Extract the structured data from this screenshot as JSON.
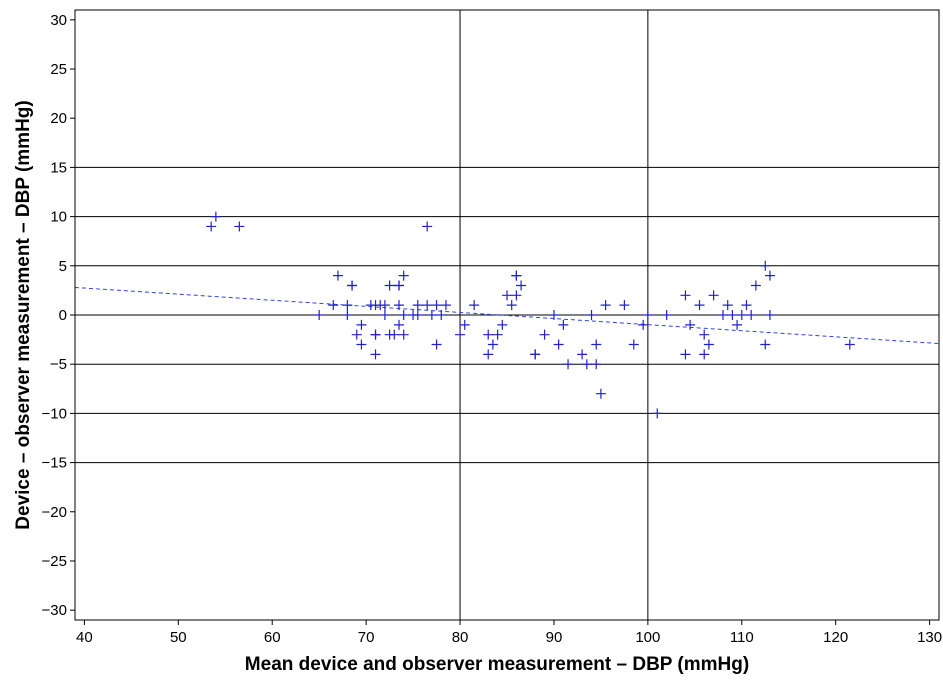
{
  "chart_data": {
    "type": "scatter",
    "title": "",
    "xlabel": "Mean device and observer measurement – DBP (mmHg)",
    "ylabel": "Device – observer measurement – DBP (mmHg)",
    "xlim": [
      39,
      131
    ],
    "ylim": [
      -31,
      31
    ],
    "x_ticks": [
      40,
      50,
      60,
      70,
      80,
      90,
      100,
      110,
      120,
      130
    ],
    "y_ticks": [
      30,
      25,
      20,
      15,
      10,
      5,
      0,
      -5,
      -10,
      -15,
      -20,
      -25,
      -30
    ],
    "x_tick_labels": [
      "40",
      "50",
      "60",
      "70",
      "80",
      "90",
      "100",
      "110",
      "120",
      "130"
    ],
    "y_tick_labels": [
      "30",
      "25",
      "20",
      "15",
      "10",
      "5",
      "0",
      "−5",
      "−10",
      "−15",
      "−20",
      "−25",
      "−30"
    ],
    "grid": {
      "horizontal": [
        15,
        10,
        5,
        0,
        -5,
        -10,
        -15
      ],
      "vertical": [
        80,
        100
      ]
    },
    "marker_color": "#2222cc",
    "trend_line": {
      "color": "#3344dd",
      "style": "dashed",
      "x": [
        39,
        131
      ],
      "y": [
        2.8,
        -2.9
      ]
    },
    "points": [
      [
        53.5,
        9
      ],
      [
        54,
        10
      ],
      [
        56.5,
        9
      ],
      [
        65,
        0
      ],
      [
        66.5,
        1
      ],
      [
        67,
        4
      ],
      [
        68,
        1
      ],
      [
        68,
        0
      ],
      [
        68.5,
        3
      ],
      [
        68.5,
        3
      ],
      [
        69,
        -2
      ],
      [
        69.5,
        -1
      ],
      [
        69.5,
        -3
      ],
      [
        70.5,
        1
      ],
      [
        71,
        1
      ],
      [
        71,
        -2
      ],
      [
        71,
        -2
      ],
      [
        71,
        -4
      ],
      [
        71.5,
        1
      ],
      [
        72,
        0
      ],
      [
        72,
        1
      ],
      [
        72.5,
        3
      ],
      [
        72.5,
        -2
      ],
      [
        73,
        -2
      ],
      [
        73.5,
        3
      ],
      [
        73.5,
        3
      ],
      [
        73.5,
        1
      ],
      [
        73.5,
        -1
      ],
      [
        74,
        4
      ],
      [
        74,
        0
      ],
      [
        74,
        -2
      ],
      [
        75,
        0
      ],
      [
        75.5,
        1
      ],
      [
        75.5,
        0
      ],
      [
        76.5,
        9
      ],
      [
        76.5,
        1
      ],
      [
        77,
        0
      ],
      [
        77.5,
        1
      ],
      [
        77.5,
        -3
      ],
      [
        78,
        0
      ],
      [
        78.5,
        1
      ],
      [
        80,
        -2
      ],
      [
        80.5,
        -1
      ],
      [
        81.5,
        1
      ],
      [
        83,
        -2
      ],
      [
        83,
        -4
      ],
      [
        83.5,
        -3
      ],
      [
        84,
        -2
      ],
      [
        84.5,
        -1
      ],
      [
        85,
        2
      ],
      [
        85.5,
        1
      ],
      [
        86,
        4
      ],
      [
        86,
        4
      ],
      [
        86,
        2
      ],
      [
        86.5,
        3
      ],
      [
        88,
        -4
      ],
      [
        88,
        -4
      ],
      [
        89,
        -2
      ],
      [
        90,
        0
      ],
      [
        90.5,
        -3
      ],
      [
        91,
        -1
      ],
      [
        91.5,
        -5
      ],
      [
        93,
        -4
      ],
      [
        93.5,
        -5
      ],
      [
        94,
        0
      ],
      [
        94.5,
        -3
      ],
      [
        94.5,
        -5
      ],
      [
        95,
        -8
      ],
      [
        95.5,
        1
      ],
      [
        97.5,
        1
      ],
      [
        98.5,
        -3
      ],
      [
        99.5,
        -1
      ],
      [
        100,
        0
      ],
      [
        101,
        -10
      ],
      [
        102,
        0
      ],
      [
        104,
        2
      ],
      [
        104,
        -4
      ],
      [
        104.5,
        -1
      ],
      [
        105.5,
        1
      ],
      [
        106,
        -2
      ],
      [
        106,
        -4
      ],
      [
        106.5,
        -3
      ],
      [
        107,
        2
      ],
      [
        108,
        0
      ],
      [
        108.5,
        1
      ],
      [
        109,
        0
      ],
      [
        109.5,
        -1
      ],
      [
        110,
        0
      ],
      [
        110.5,
        1
      ],
      [
        111,
        0
      ],
      [
        111.5,
        3
      ],
      [
        112.5,
        5
      ],
      [
        112.5,
        -3
      ],
      [
        113,
        4
      ],
      [
        113,
        0
      ],
      [
        121.5,
        -3
      ]
    ]
  }
}
